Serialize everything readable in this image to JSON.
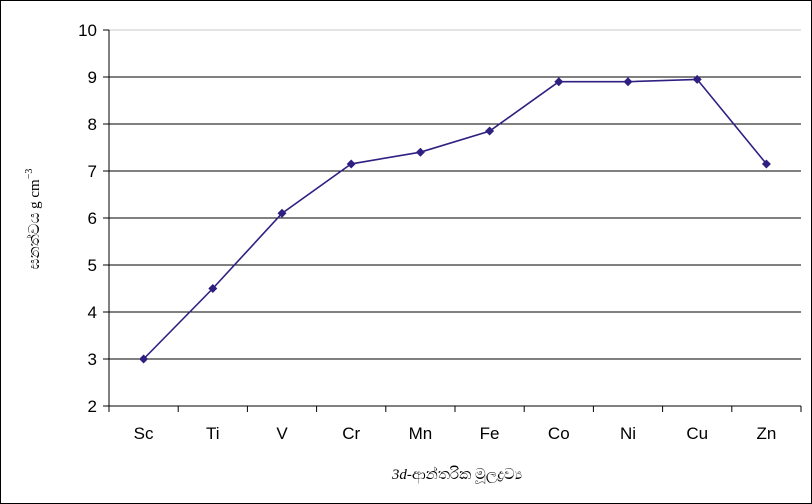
{
  "chart_data": {
    "type": "line",
    "categories": [
      "Sc",
      "Ti",
      "V",
      "Cr",
      "Mn",
      "Fe",
      "Co",
      "Ni",
      "Cu",
      "Zn"
    ],
    "series": [
      {
        "values": [
          3.0,
          4.5,
          6.1,
          7.15,
          7.4,
          7.85,
          8.9,
          8.9,
          8.95,
          7.15
        ]
      }
    ],
    "y_ticks": [
      "2",
      "3",
      "4",
      "5",
      "6",
      "7",
      "8",
      "9",
      "10"
    ],
    "ylim": [
      2,
      10
    ],
    "xlabel_prefix": "3d",
    "xlabel_rest": "-ආන්තරික මූලද්‍රව්‍ය",
    "ylabel_main": "ඝනත්වය g cm",
    "ylabel_sup": "−3",
    "grid": true,
    "line_color": "#2e2080",
    "marker_color": "#2e2080"
  }
}
